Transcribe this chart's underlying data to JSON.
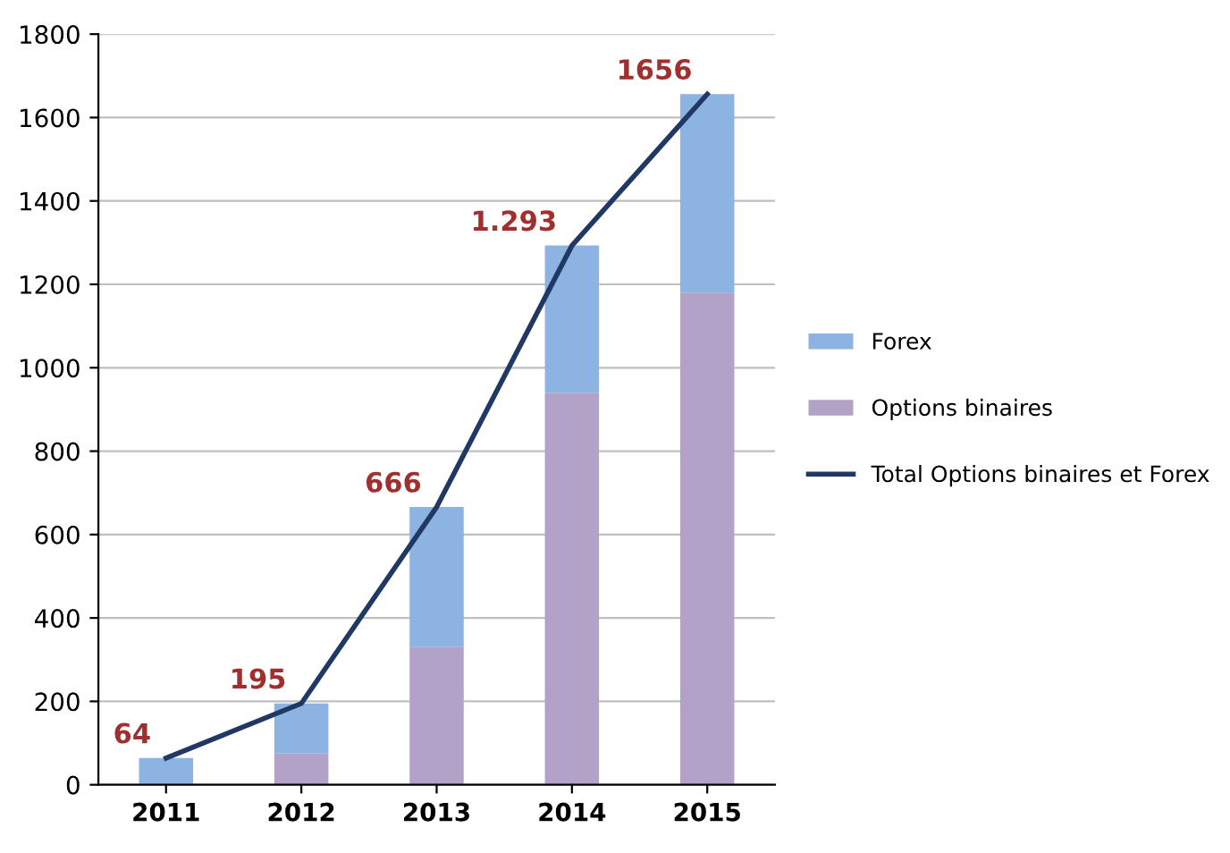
{
  "chart_data": {
    "type": "bar",
    "stacked": true,
    "categories": [
      "2011",
      "2012",
      "2013",
      "2014",
      "2015"
    ],
    "series": [
      {
        "name": "Options binaires",
        "color": "#b3a2c7",
        "values": [
          0,
          75,
          330,
          940,
          1180
        ]
      },
      {
        "name": "Forex",
        "color": "#8db3e2",
        "values": [
          64,
          120,
          336,
          353,
          476
        ]
      },
      {
        "name": "Total Options binaires et Forex",
        "type": "line",
        "color": "#1f3864",
        "values": [
          64,
          195,
          666,
          1293,
          1656
        ],
        "value_labels": [
          "64",
          "195",
          "666",
          "1.293",
          "1656"
        ]
      }
    ],
    "ylim": [
      0,
      1800
    ],
    "yticks": [
      0,
      200,
      400,
      600,
      800,
      1000,
      1200,
      1400,
      1600,
      1800
    ],
    "grid": "y",
    "legend": "right"
  }
}
